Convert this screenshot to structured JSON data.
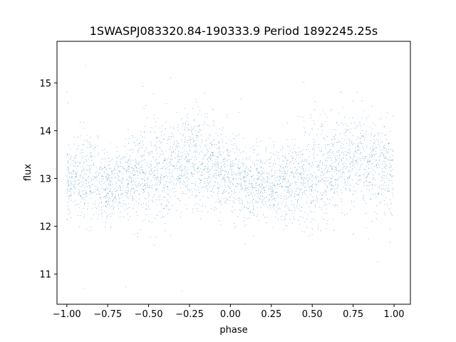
{
  "chart_data": {
    "type": "scatter",
    "title": "1SWASPJ083320.84-190333.9 Period 1892245.25s",
    "xlabel": "phase",
    "ylabel": "flux",
    "xlim": [
      -1.06,
      1.1
    ],
    "ylim": [
      10.37,
      15.87
    ],
    "xticks": [
      -1.0,
      -0.75,
      -0.5,
      -0.25,
      0.0,
      0.25,
      0.5,
      0.75,
      1.0
    ],
    "xtick_labels": [
      "−1.00",
      "−0.75",
      "−0.50",
      "−0.25",
      "0.00",
      "0.25",
      "0.50",
      "0.75",
      "1.00"
    ],
    "yticks": [
      11,
      12,
      13,
      14,
      15
    ],
    "ytick_labels": [
      "11",
      "12",
      "13",
      "14",
      "15"
    ],
    "grid": false,
    "series": [
      {
        "color": "#1f77b4",
        "approx_points": 14000,
        "envelope": {
          "phase": [
            -1.0,
            -0.9,
            -0.8,
            -0.7,
            -0.6,
            -0.5,
            -0.4,
            -0.3,
            -0.2,
            -0.1,
            0.0,
            0.1,
            0.2,
            0.3,
            0.4,
            0.5,
            0.6,
            0.7,
            0.8,
            0.9,
            1.0
          ],
          "median_flux": [
            12.95,
            13.05,
            12.9,
            12.85,
            13.0,
            13.1,
            13.15,
            13.35,
            13.4,
            13.25,
            13.05,
            12.9,
            12.85,
            12.9,
            13.05,
            13.1,
            13.15,
            13.35,
            13.4,
            13.25,
            13.05
          ],
          "flux_low": [
            12.3,
            12.2,
            12.2,
            12.1,
            12.0,
            11.7,
            12.0,
            12.3,
            12.4,
            12.2,
            12.0,
            12.1,
            12.2,
            12.2,
            11.9,
            11.7,
            12.0,
            12.3,
            12.4,
            12.2,
            12.0
          ],
          "flux_high": [
            13.7,
            14.3,
            13.8,
            13.6,
            13.8,
            13.9,
            14.0,
            14.1,
            14.3,
            14.2,
            13.9,
            13.8,
            13.7,
            13.8,
            13.9,
            14.0,
            14.1,
            14.2,
            14.3,
            14.2,
            14.3
          ]
        }
      }
    ]
  }
}
